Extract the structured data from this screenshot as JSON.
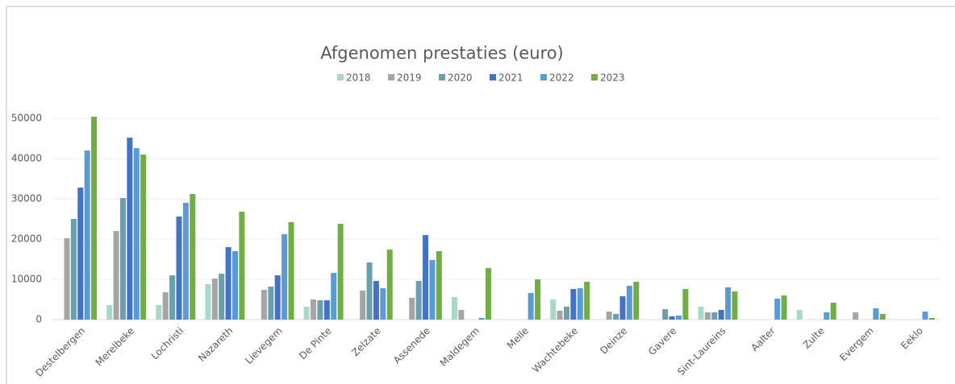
{
  "chart_data": {
    "type": "bar",
    "title": "Afgenomen prestaties (euro)",
    "categories": [
      "Destelbergen",
      "Merelbeke",
      "Lochristi",
      "Nazareth",
      "Lievegem",
      "De Pinte",
      "Zelzate",
      "Assenede",
      "Maldegem",
      "Melle",
      "Wachtebeke",
      "Deinze",
      "Gavere",
      "Sint-Laureins",
      "Aalter",
      "Zulte",
      "Evergem",
      "Eeklo"
    ],
    "series": [
      {
        "name": "2018",
        "color": "#a9d9c6",
        "values": [
          0,
          3600,
          3600,
          8800,
          0,
          3200,
          0,
          0,
          5600,
          0,
          5000,
          0,
          0,
          3200,
          0,
          2400,
          0,
          0
        ]
      },
      {
        "name": "2019",
        "color": "#a5a5a5",
        "values": [
          20200,
          22000,
          6800,
          10200,
          7400,
          5000,
          7200,
          5400,
          2400,
          0,
          2200,
          2000,
          0,
          1800,
          0,
          0,
          1800,
          0
        ]
      },
      {
        "name": "2020",
        "color": "#6a9fae",
        "values": [
          25000,
          30200,
          11000,
          11400,
          8200,
          4800,
          14200,
          9600,
          0,
          0,
          3200,
          1400,
          2600,
          1800,
          0,
          0,
          0,
          0
        ]
      },
      {
        "name": "2021",
        "color": "#4472c4",
        "values": [
          32800,
          45200,
          25600,
          18000,
          11000,
          4800,
          9600,
          21000,
          0,
          0,
          7600,
          5800,
          800,
          2400,
          0,
          0,
          0,
          0
        ]
      },
      {
        "name": "2022",
        "color": "#5b9bd5",
        "values": [
          42000,
          42600,
          29000,
          17000,
          21200,
          11600,
          7800,
          14800,
          400,
          6600,
          7800,
          8400,
          1000,
          8000,
          5200,
          1800,
          2800,
          2000
        ]
      },
      {
        "name": "2023",
        "color": "#70ad47",
        "values": [
          50400,
          41000,
          31200,
          26800,
          24200,
          23800,
          17400,
          17000,
          12800,
          10000,
          9400,
          9400,
          7600,
          7000,
          6000,
          4200,
          1400,
          400
        ]
      }
    ],
    "ylim": [
      0,
      50000
    ],
    "yticks": [
      0,
      10000,
      20000,
      30000,
      40000,
      50000
    ],
    "grid": true,
    "legend": "top"
  }
}
